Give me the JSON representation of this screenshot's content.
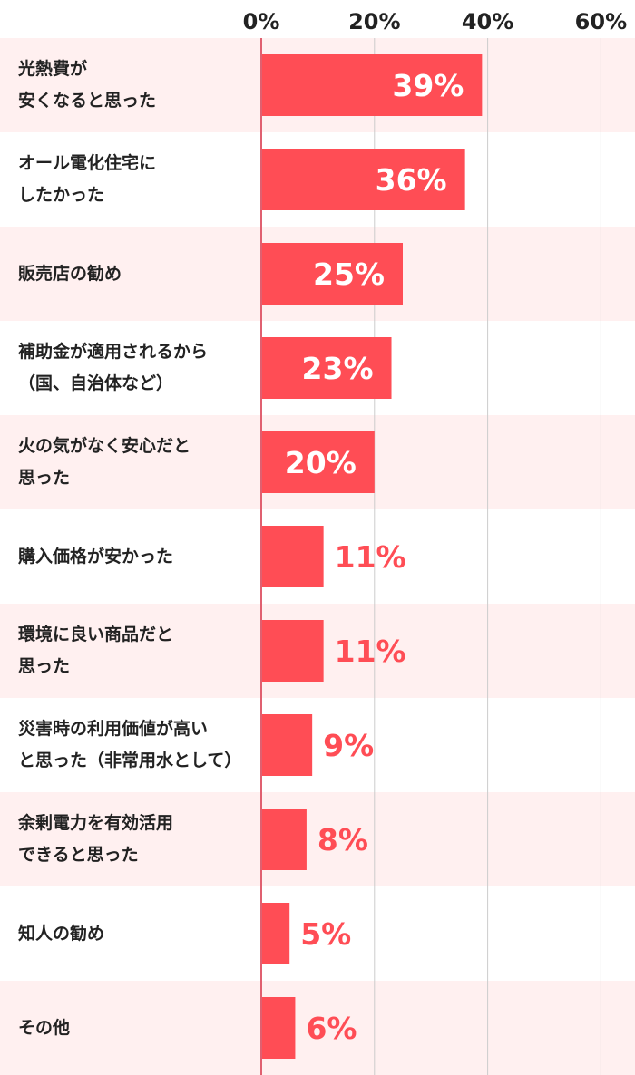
{
  "chart_data": {
    "type": "bar",
    "orientation": "horizontal",
    "categories": [
      "光熱費が\n安くなると思った",
      "オール電化住宅に\nしたかった",
      "販売店の勧め",
      "補助金が適用されるから\n（国、自治体など）",
      "火の気がなく安心だと\n思った",
      "購入価格が安かった",
      "環境に良い商品だと\n思った",
      "災害時の利用価値が高い\nと思った（非常用水として）",
      "余剰電力を有効活用\nできると思った",
      "知人の勧め",
      "その他"
    ],
    "values": [
      39,
      36,
      25,
      23,
      20,
      11,
      11,
      9,
      8,
      5,
      6
    ],
    "value_labels": [
      "39%",
      "36%",
      "25%",
      "23%",
      "20%",
      "11%",
      "11%",
      "9%",
      "8%",
      "5%",
      "6%"
    ],
    "x_ticks": [
      0,
      20,
      40,
      60
    ],
    "x_tick_labels": [
      "0%",
      "20%",
      "40%",
      "60%"
    ],
    "xlim": [
      0,
      67
    ],
    "grid": true,
    "colors": {
      "bar": "#ff4d55",
      "row_alt": "#fff0f0",
      "grid": "#cccccc",
      "axis": "#e06070",
      "label_inside": "#ffffff",
      "label_outside": "#ff4d55",
      "text": "#222222"
    }
  }
}
